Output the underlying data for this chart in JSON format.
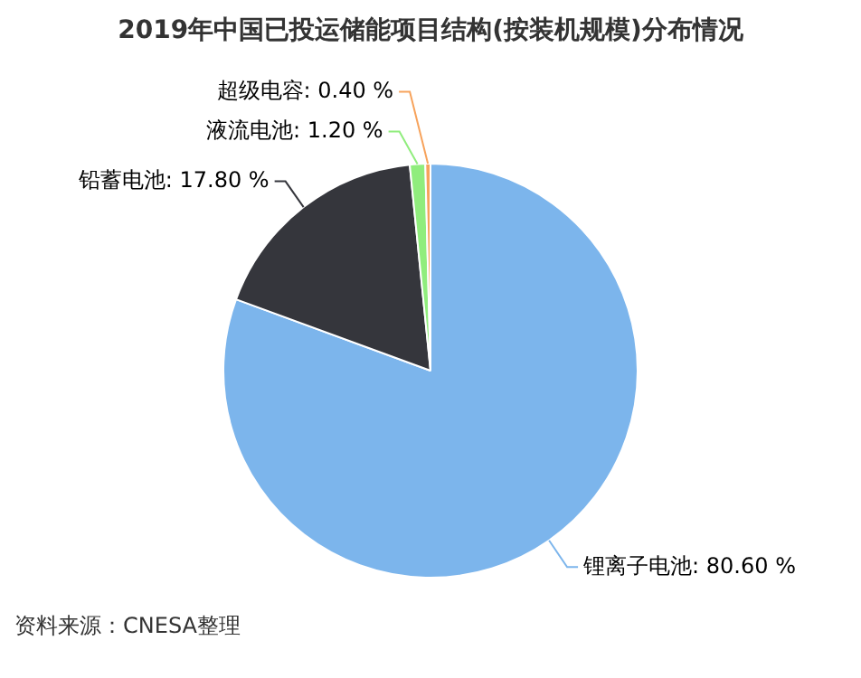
{
  "chart_data": {
    "type": "pie",
    "title": "2019年中国已投运储能项目结构(按装机规模)分布情况",
    "categories": [
      "锂离子电池",
      "铅蓄电池",
      "液流电池",
      "超级电容"
    ],
    "values": [
      80.6,
      17.8,
      1.2,
      0.4
    ],
    "value_labels": [
      "80.60 %",
      "17.80 %",
      "1.20 %",
      "0.40 %"
    ],
    "colors": [
      "#7cb5ec",
      "#35363c",
      "#90ed7d",
      "#f7a35c"
    ],
    "annotations": [
      "资料来源：CNESA整理"
    ],
    "legend": false
  }
}
